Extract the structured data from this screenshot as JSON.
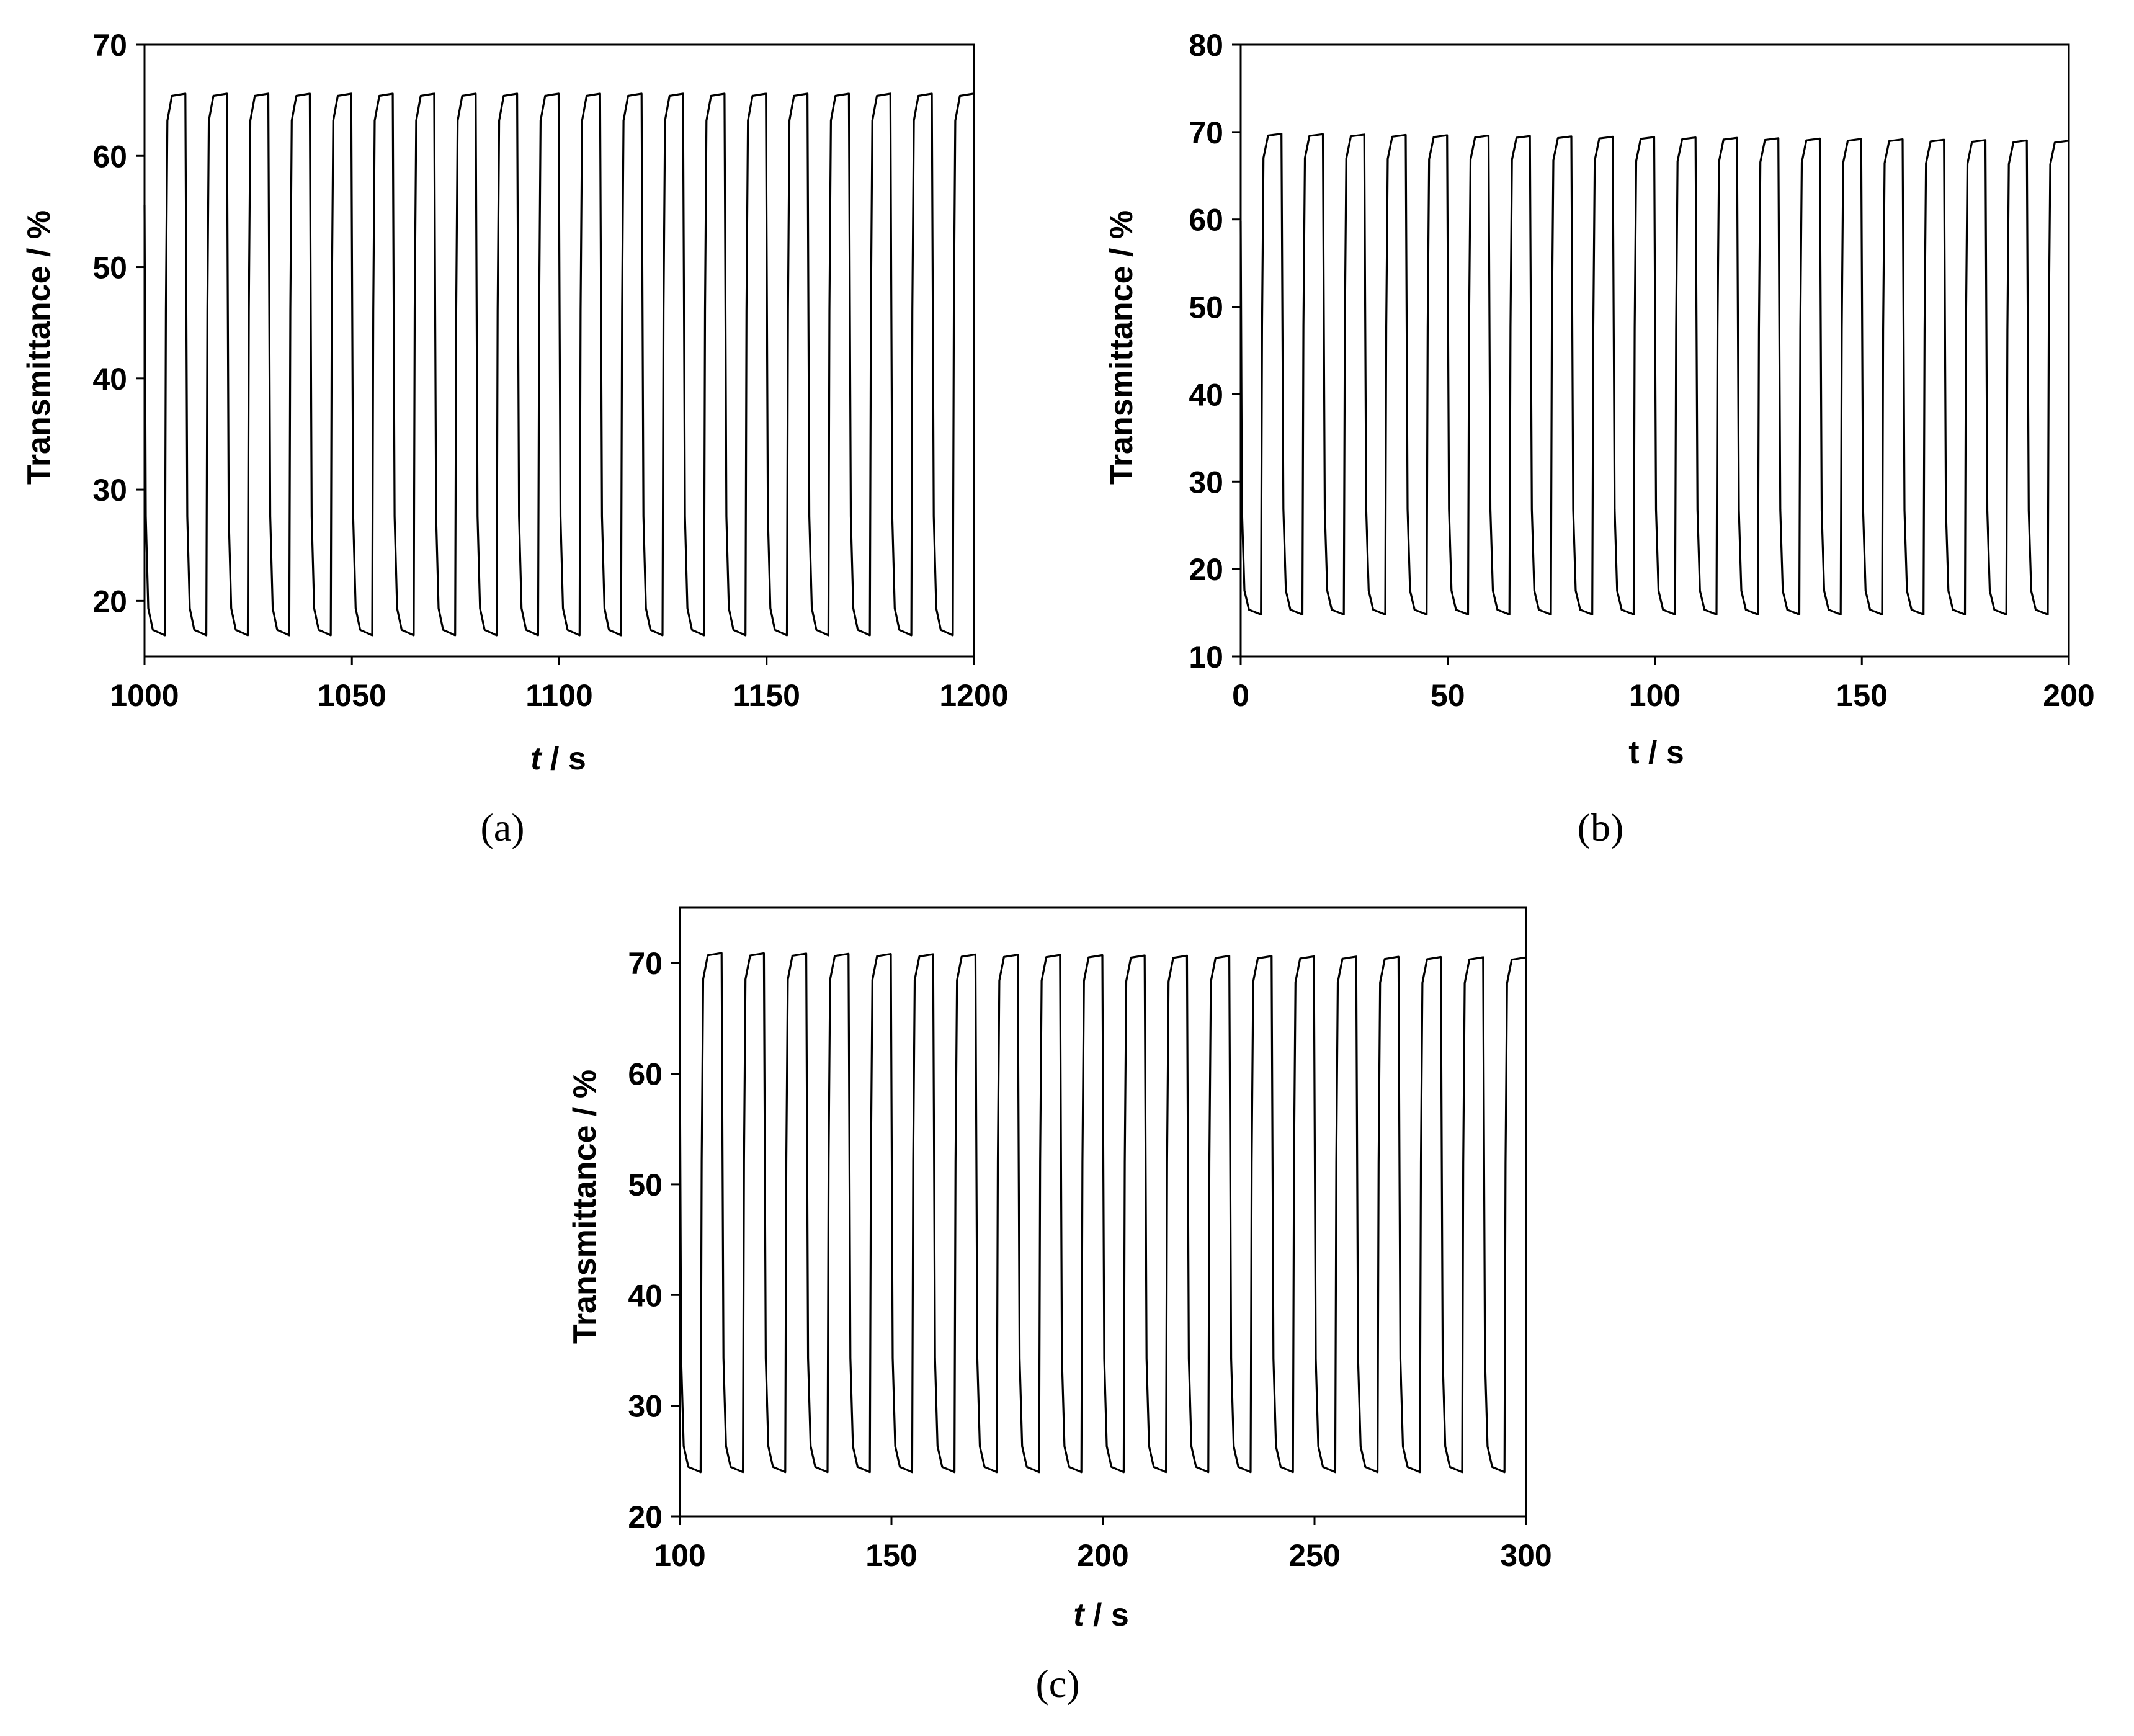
{
  "chart_data": [
    {
      "type": "line",
      "panel_label": "(a)",
      "xlabel_italic": "t",
      "xlabel_rest": " / s",
      "ylabel": "Transmittance / %",
      "xlim": [
        1000,
        1200
      ],
      "ylim": [
        15,
        70
      ],
      "xticks": [
        1000,
        1050,
        1100,
        1150,
        1200
      ],
      "yticks": [
        20,
        30,
        40,
        50,
        60,
        70
      ],
      "cycle_period": 10,
      "cycle_count": 20,
      "bleached_transmittance": 65.6,
      "colored_transmittance": 16.9
    },
    {
      "type": "line",
      "panel_label": "(b)",
      "xlabel_italic": "",
      "xlabel_rest": "t / s",
      "ylabel": "Transmittance / %",
      "xlim": [
        0,
        200
      ],
      "ylim": [
        10,
        80
      ],
      "xticks": [
        0,
        50,
        100,
        150,
        200
      ],
      "yticks": [
        10,
        20,
        30,
        40,
        50,
        60,
        70,
        80
      ],
      "cycle_period": 10,
      "cycle_count": 20,
      "bleached_transmittance_start": 69.8,
      "bleached_transmittance_end": 69.0,
      "colored_transmittance": 14.8
    },
    {
      "type": "line",
      "panel_label": "(c)",
      "xlabel_italic": "t",
      "xlabel_rest": " / s",
      "ylabel": "Transmittance / %",
      "xlim": [
        100,
        300
      ],
      "ylim": [
        20,
        75
      ],
      "xticks": [
        100,
        150,
        200,
        250,
        300
      ],
      "yticks": [
        20,
        30,
        40,
        50,
        60,
        70
      ],
      "cycle_period": 10,
      "cycle_count": 20,
      "bleached_transmittance_start": 70.9,
      "bleached_transmittance_end": 70.5,
      "colored_transmittance": 24.0
    }
  ]
}
